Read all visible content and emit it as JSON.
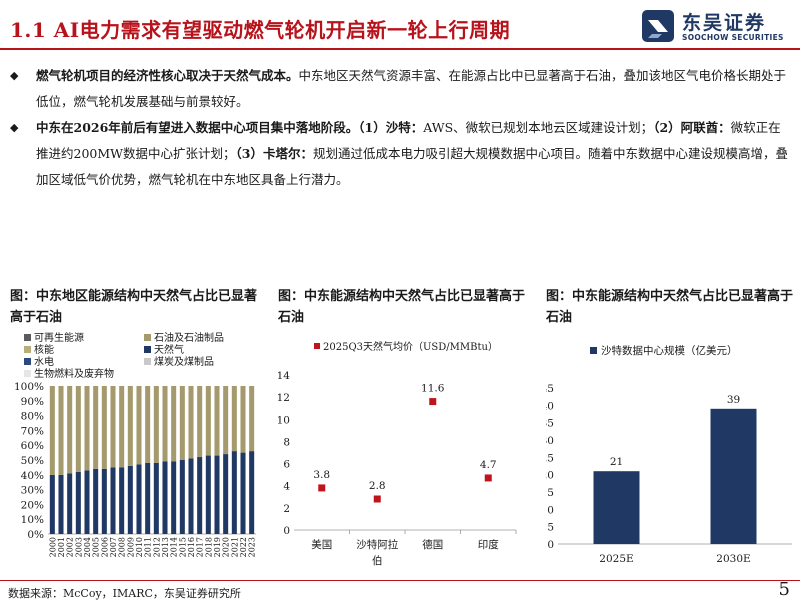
{
  "header": {
    "title": "1.1 AI电力需求有望驱动燃气轮机开启新一轮上行周期",
    "logo_cn": "东吴证券",
    "logo_en": "SOOCHOW SECURITIES"
  },
  "bullets": [
    {
      "strong": "燃气轮机项目的经济性核心取决于天然气成本。",
      "text": "中东地区天然气资源丰富、在能源占比中已显著高于石油，叠加该地区气电价格长期处于低位，燃气轮机发展基础与前景较好。"
    },
    {
      "strong": "中东在2026年前后有望进入数据中心项目集中落地阶段。",
      "segments": [
        {
          "strong": "（1）沙特：",
          "text": "AWS、微软已规划本地云区域建设计划；"
        },
        {
          "strong": "（2）阿联酋：",
          "text": "微软正在推进约200MW数据中心扩张计划；"
        },
        {
          "strong": "（3）卡塔尔：",
          "text": "规划通过低成本电力吸引超大规模数据中心项目。随着中东数据中心建设规模高增，叠加区域低气价优势，燃气轮机在中东地区具备上行潜力。"
        }
      ]
    }
  ],
  "charts": {
    "left_title": "图：中东地区能源结构中天然气占比已显著高于石油",
    "mid_title": "图：中东能源结构中天然气占比已显著高于石油",
    "right_title": "图：中东能源结构中天然气占比已显著高于石油"
  },
  "chart_data": [
    {
      "type": "bar",
      "stacked": true,
      "categories": [
        "2000",
        "2001",
        "2002",
        "2003",
        "2004",
        "2005",
        "2006",
        "2007",
        "2008",
        "2009",
        "2010",
        "2011",
        "2012",
        "2013",
        "2014",
        "2015",
        "2016",
        "2017",
        "2018",
        "2019",
        "2020",
        "2021",
        "2022",
        "2023"
      ],
      "y_ticks": [
        "0%",
        "10%",
        "20%",
        "30%",
        "40%",
        "50%",
        "60%",
        "70%",
        "80%",
        "90%",
        "100%"
      ],
      "ylim": [
        0,
        100
      ],
      "legend": [
        {
          "name": "可再生能源",
          "color": "#5b5b5b"
        },
        {
          "name": "石油及石油制品",
          "color": "#a59a6d"
        },
        {
          "name": "核能",
          "color": "#b9ad7a"
        },
        {
          "name": "天然气",
          "color": "#1f3864"
        },
        {
          "name": "水电",
          "color": "#2e4a7d"
        },
        {
          "name": "煤炭及煤制品",
          "color": "#c9c9c9"
        },
        {
          "name": "生物燃料及废弃物",
          "color": "#e6e6e6"
        }
      ],
      "series": [
        {
          "name": "天然气",
          "color": "#1f3864",
          "values": [
            40,
            40,
            41,
            42,
            43,
            44,
            44,
            45,
            45,
            46,
            47,
            48,
            48,
            49,
            49,
            50,
            51,
            52,
            53,
            53,
            54,
            56,
            55,
            56
          ]
        },
        {
          "name": "石油及石油制品",
          "color": "#a59a6d",
          "values": [
            60,
            60,
            59,
            58,
            57,
            56,
            56,
            55,
            55,
            54,
            53,
            52,
            52,
            51,
            51,
            50,
            49,
            48,
            47,
            47,
            46,
            44,
            45,
            44
          ]
        }
      ]
    },
    {
      "type": "scatter",
      "categories": [
        "美国",
        "沙特阿拉伯",
        "德国",
        "印度"
      ],
      "series": [
        {
          "name": "2025Q3天然气均价（USD/MMBtu）",
          "color": "#c0141c",
          "values": [
            3.8,
            2.8,
            11.6,
            4.7
          ]
        }
      ],
      "data_labels": [
        "3.8",
        "2.8",
        "11.6",
        "4.7"
      ],
      "y_ticks": [
        "0",
        "2",
        "4",
        "6",
        "8",
        "10",
        "12",
        "14"
      ],
      "ylim": [
        0,
        14
      ]
    },
    {
      "type": "bar",
      "categories": [
        "2025E",
        "2030E"
      ],
      "series": [
        {
          "name": "沙特数据中心规模（亿美元）",
          "color": "#1f3864",
          "values": [
            21,
            39
          ]
        }
      ],
      "data_labels": [
        "21",
        "39"
      ],
      "y_ticks": [
        "0",
        "5",
        "10",
        "15",
        "20",
        "25",
        "30",
        "35",
        "40",
        "45"
      ],
      "ylim": [
        0,
        45
      ]
    }
  ],
  "footer": {
    "source": "数据来源：McCoy，IMARC，东吴证券研究所",
    "page": "5"
  }
}
